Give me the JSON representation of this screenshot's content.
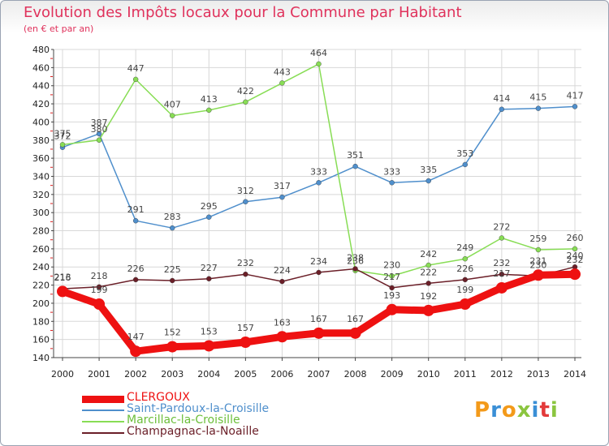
{
  "header": {
    "title": "Evolution des Impôts locaux pour la Commune par Habitant",
    "subtitle": "(en € et par an)"
  },
  "chart_data": {
    "type": "line",
    "title": "Evolution des Impôts locaux pour la Commune par Habitant",
    "subtitle": "(en € et par an)",
    "x": [
      "2000",
      "2001",
      "2002",
      "2003",
      "2004",
      "2005",
      "2006",
      "2007",
      "2008",
      "2009",
      "2010",
      "2011",
      "2012",
      "2013",
      "2014"
    ],
    "ylim": [
      140,
      480
    ],
    "yticks": [
      140,
      160,
      180,
      200,
      220,
      240,
      260,
      280,
      300,
      320,
      340,
      360,
      380,
      400,
      420,
      440,
      460,
      480
    ],
    "grid": true,
    "legend_position": "bottom-left",
    "series": [
      {
        "name": "CLERGOUX",
        "color": "#ee1111",
        "values": [
          213,
          199,
          147,
          152,
          153,
          157,
          163,
          167,
          167,
          193,
          192,
          199,
          217,
          231,
          232
        ]
      },
      {
        "name": "Saint-Pardoux-la-Croisille",
        "color": "#4f8fcc",
        "values": [
          372,
          387,
          291,
          283,
          295,
          312,
          317,
          333,
          351,
          333,
          335,
          353,
          414,
          415,
          417
        ]
      },
      {
        "name": "Marcillac-la-Croisille",
        "color": "#88dd55",
        "values": [
          375,
          380,
          447,
          407,
          413,
          422,
          443,
          464,
          236,
          230,
          242,
          249,
          272,
          259,
          260
        ]
      },
      {
        "name": "Champagnac-la-Noaille",
        "color": "#6b1f28",
        "values": [
          216,
          218,
          226,
          225,
          227,
          232,
          224,
          234,
          238,
          217,
          222,
          226,
          232,
          230,
          240
        ]
      }
    ]
  },
  "logo": {
    "text": "Proxiti"
  }
}
